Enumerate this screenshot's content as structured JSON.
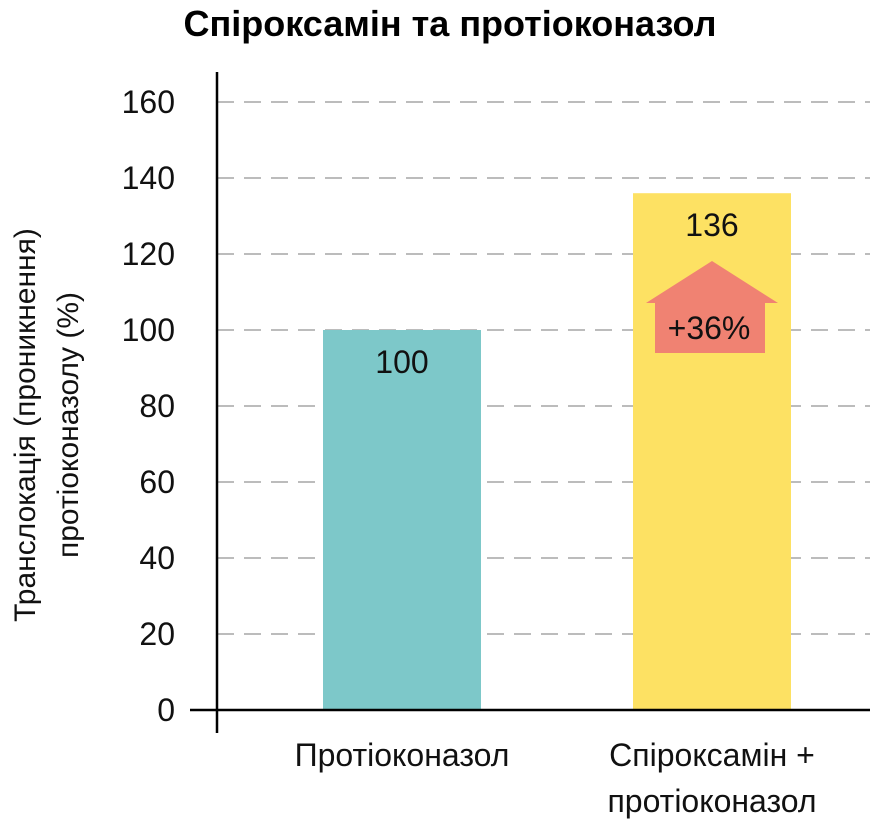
{
  "chart_data": {
    "type": "bar",
    "title": "Спіроксамін та протіоконазол",
    "ylabel": [
      "Транслокація (проникнення)",
      "протіоконазолу  (%)"
    ],
    "xlabel": "",
    "ylim": [
      0,
      160
    ],
    "yticks": [
      0,
      20,
      40,
      60,
      80,
      100,
      120,
      140,
      160
    ],
    "grid": true,
    "categories": [
      [
        "Протіоконазол"
      ],
      [
        "Спіроксамін +",
        "протіоконазол"
      ]
    ],
    "values": [
      100,
      136
    ],
    "value_labels": [
      "100",
      "136"
    ],
    "colors": [
      "#7dc8c9",
      "#fde163"
    ],
    "annotation": {
      "text": "+36%",
      "shape": "up-arrow",
      "color": "#f08272",
      "bar_index": 1
    }
  }
}
